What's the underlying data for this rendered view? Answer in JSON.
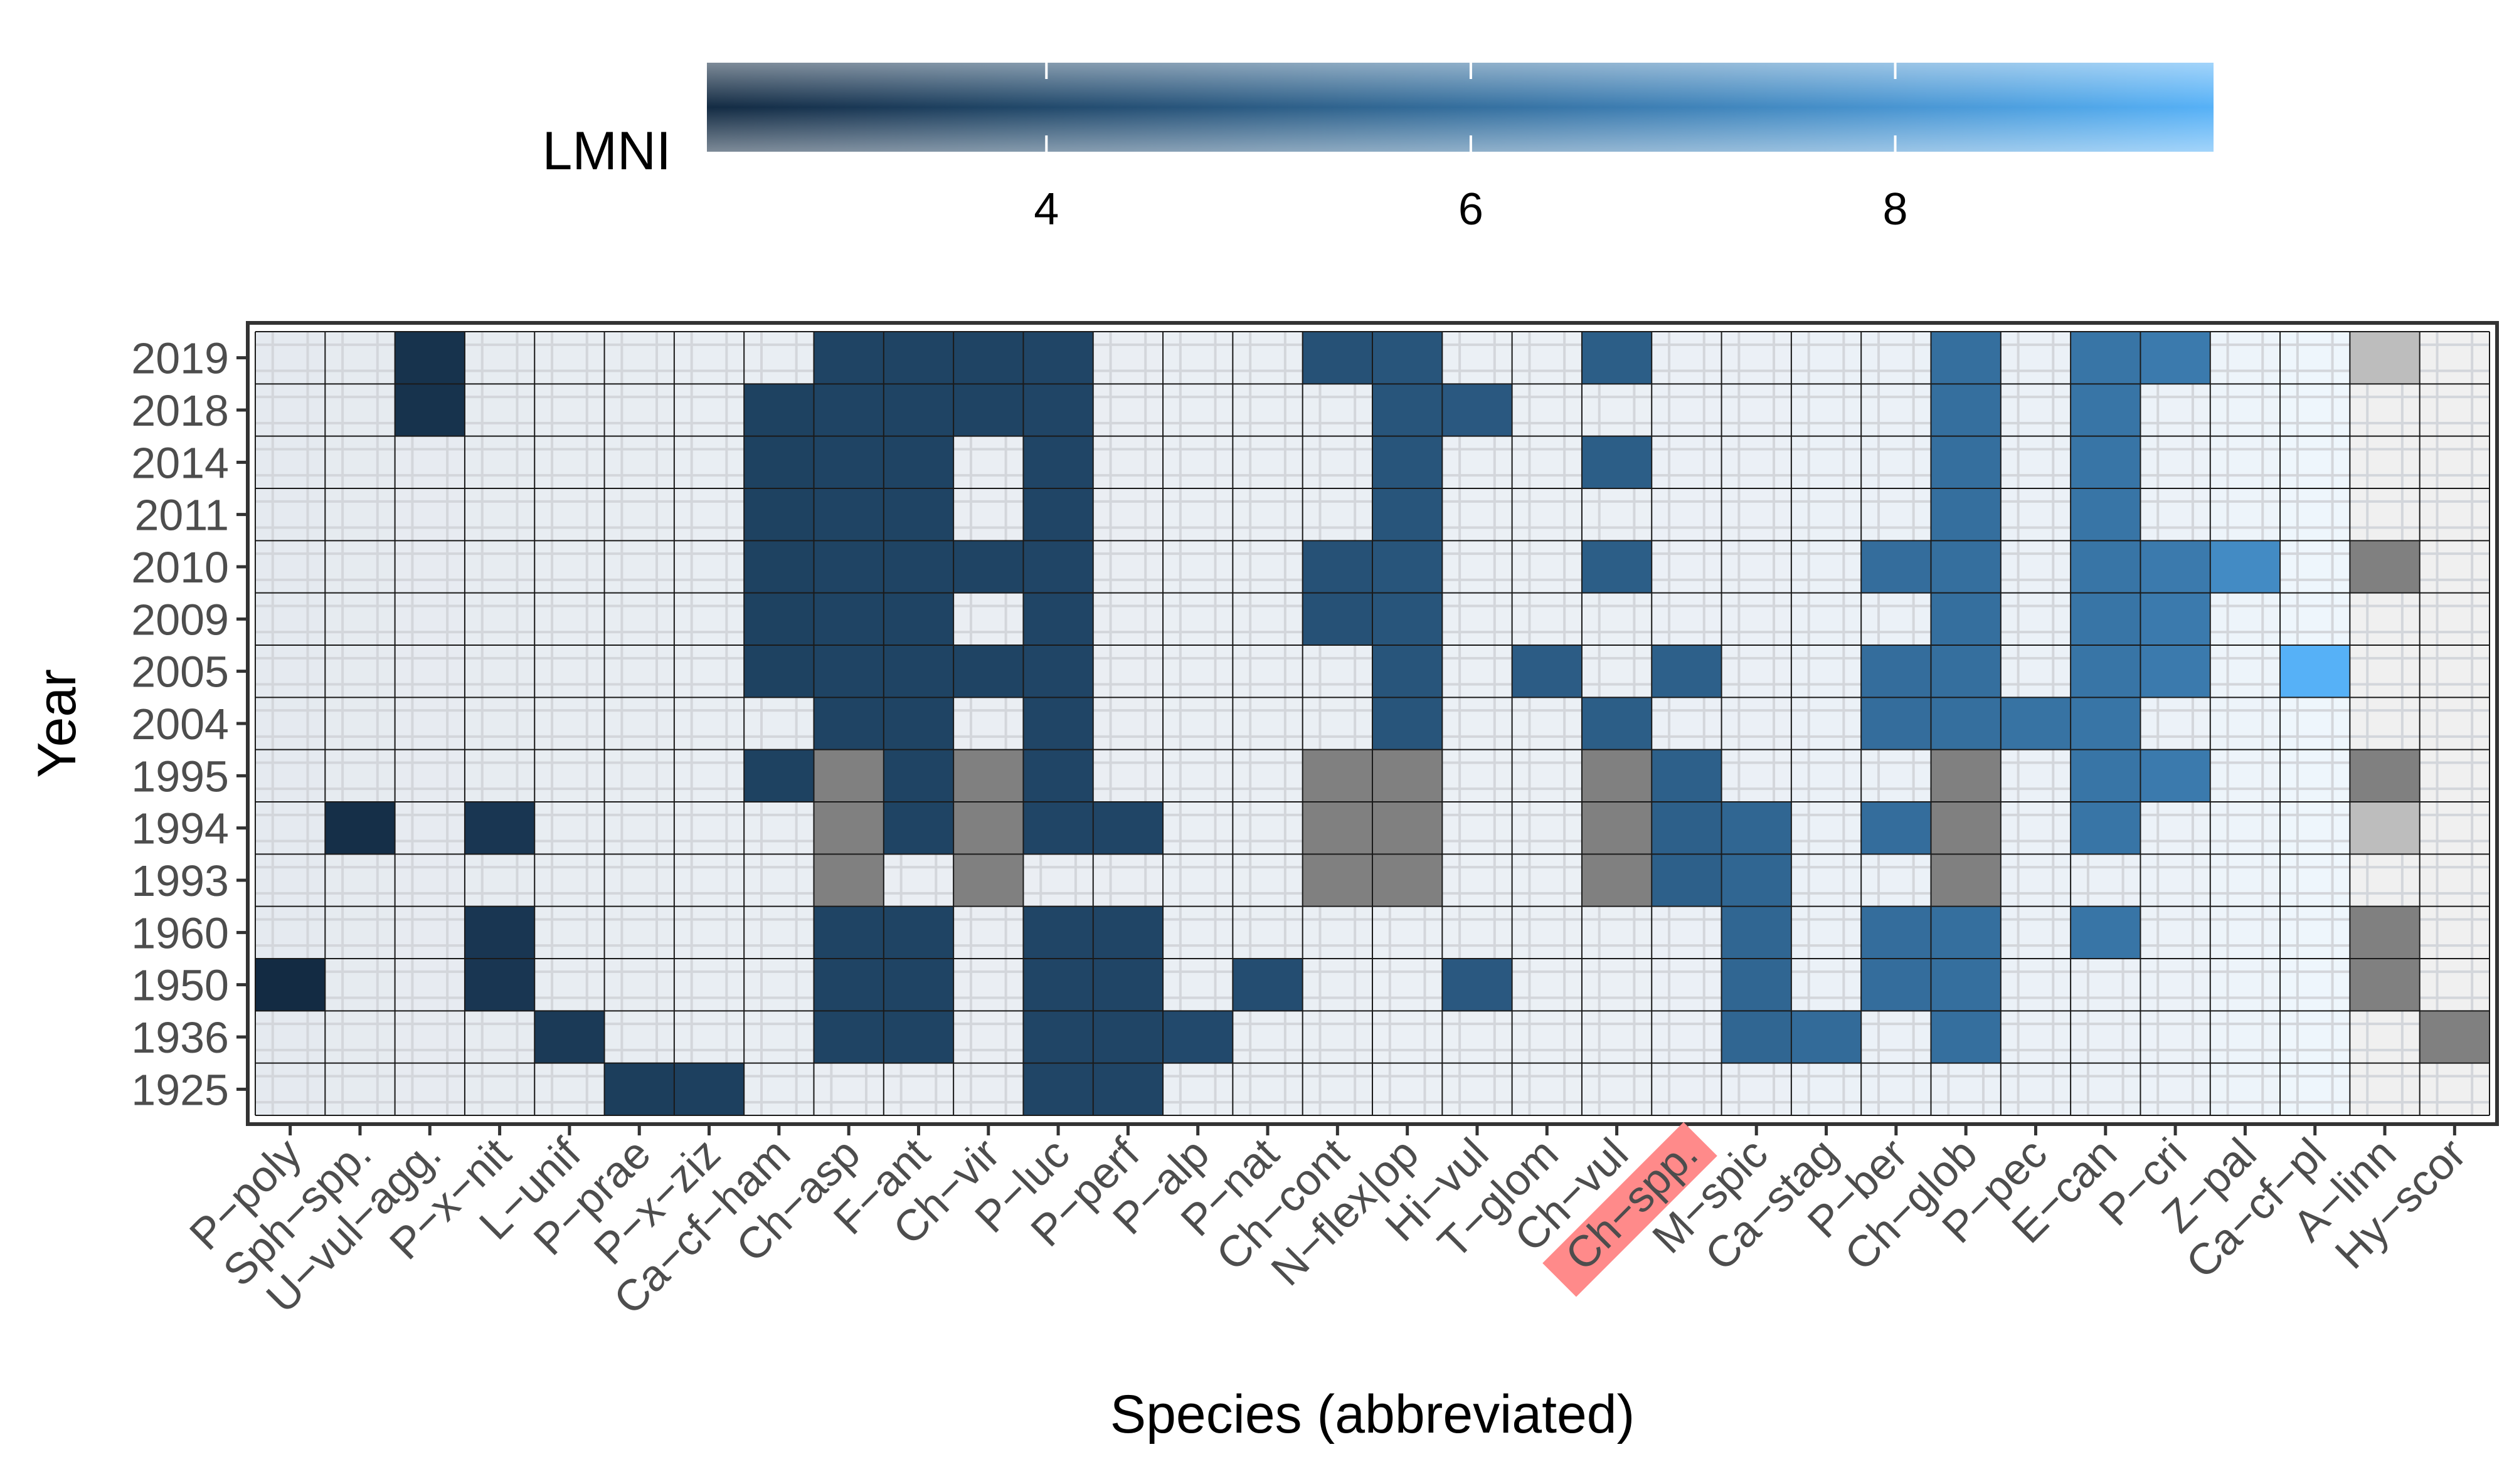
{
  "chart_data": {
    "type": "heatmap",
    "xlabel": "Species (abbreviated)",
    "ylabel": "Year",
    "x_categories": [
      "P-poly",
      "Sph-spp.",
      "U-vul-agg.",
      "P-x-nit",
      "L-unif",
      "P-prae",
      "P-x-ziz",
      "Ca-cf-ham",
      "Ch-asp",
      "F-ant",
      "Ch-vir",
      "P-luc",
      "P-perf",
      "P-alp",
      "P-nat",
      "Ch-cont",
      "N-flex|op",
      "Hi-vul",
      "T-glom",
      "Ch-vul",
      "Ch-spp.",
      "M-spic",
      "Ca-stag",
      "P-ber",
      "Ch-glob",
      "P-pec",
      "E-can",
      "P-cri",
      "Z-pal",
      "Ca-cf-pl",
      "A-linn",
      "Hy-scor"
    ],
    "x_tick_labels": [
      "P−poly",
      "Sph−spp.",
      "U−vul−agg.",
      "P−x−nit",
      "L−unif",
      "P−prae",
      "P−x−ziz",
      "Ca−cf−ham",
      "Ch−asp",
      "F−ant",
      "Ch−vir",
      "P−luc",
      "P−perf",
      "P−alp",
      "P−nat",
      "Ch−cont",
      "N−flex|op",
      "Hi−vul",
      "T−glom",
      "Ch−vul",
      "Ch−spp.",
      "M−spic",
      "Ca−stag",
      "P−ber",
      "Ch−glob",
      "P−pec",
      "E−can",
      "P−cri",
      "Z−pal",
      "Ca−cf−pl",
      "A−linn",
      "Hy−scor"
    ],
    "highlighted_x_label": "Ch−spp.",
    "highlight_color": "#ff8a8a",
    "y_categories": [
      "2019",
      "2018",
      "2014",
      "2011",
      "2010",
      "2009",
      "2005",
      "2004",
      "1995",
      "1994",
      "1993",
      "1960",
      "1950",
      "1936",
      "1925"
    ],
    "legend": {
      "title": "LMNI",
      "placement": "top",
      "range": [
        2.4,
        9.5
      ],
      "ticks": [
        "4",
        "6",
        "8"
      ],
      "tick_values": [
        4,
        6,
        8
      ],
      "gradient_colors": [
        "#132b43",
        "#56b1f7"
      ]
    },
    "species_lmni": [
      2.4,
      2.6,
      2.8,
      3.0,
      3.2,
      3.4,
      3.5,
      3.6,
      3.7,
      3.7,
      3.7,
      3.8,
      3.8,
      4.0,
      4.2,
      4.4,
      4.6,
      4.8,
      5.0,
      5.1,
      5.2,
      5.5,
      5.8,
      5.9,
      6.0,
      6.2,
      6.3,
      6.6,
      7.5,
      9.5,
      null,
      null
    ],
    "column_background_colors": [
      "#e5eaf0",
      "#e6ebf0",
      "#e7ebf1",
      "#e7ecf1",
      "#e8edf2",
      "#e8edf2",
      "#e9eef3",
      "#e9eef3",
      "#eaeef3",
      "#eaeef3",
      "#eaeef3",
      "#eaeef3",
      "#eaeef3",
      "#eaeff4",
      "#eaeff4",
      "#eaeff4",
      "#ebf0f5",
      "#ebf0f5",
      "#ebf0f5",
      "#ebf0f5",
      "#ebf0f6",
      "#ebf0f6",
      "#ebf1f7",
      "#ebf1f7",
      "#ebf1f7",
      "#ebf1f7",
      "#ebf1f7",
      "#ecf2f8",
      "#edf4fa",
      "#eef6fc",
      "#f0f0f0",
      "#f0f0f0"
    ],
    "missing_color": "#808080",
    "light_missing_color": "#bdbdbd",
    "cells": [
      {
        "species": "P-poly",
        "years": [
          "1950"
        ],
        "lmni": 2.4
      },
      {
        "species": "Sph-spp.",
        "years": [
          "1994"
        ],
        "lmni": 2.6
      },
      {
        "species": "U-vul-agg.",
        "years": [
          "2019",
          "2018"
        ],
        "lmni": 2.8
      },
      {
        "species": "P-x-nit",
        "years": [
          "1994",
          "1960",
          "1950"
        ],
        "lmni": 3.0
      },
      {
        "species": "L-unif",
        "years": [
          "1936"
        ],
        "lmni": 3.2
      },
      {
        "species": "P-prae",
        "years": [
          "1925"
        ],
        "lmni": 3.4
      },
      {
        "species": "P-x-ziz",
        "years": [
          "1925"
        ],
        "lmni": 3.5
      },
      {
        "species": "Ca-cf-ham",
        "years": [
          "2018",
          "2014",
          "2011",
          "2010",
          "2009",
          "2005",
          "1995"
        ],
        "lmni": 3.6
      },
      {
        "species": "Ch-asp",
        "years": [
          "2019",
          "2018",
          "2014",
          "2011",
          "2010",
          "2009",
          "2005",
          "2004",
          "1960",
          "1950",
          "1936"
        ],
        "lmni": 3.7,
        "missing_years": [
          "1995",
          "1994",
          "1993"
        ]
      },
      {
        "species": "F-ant",
        "years": [
          "2019",
          "2018",
          "2014",
          "2011",
          "2010",
          "2009",
          "2005",
          "2004",
          "1995",
          "1994",
          "1960",
          "1950",
          "1936"
        ],
        "lmni": 3.7
      },
      {
        "species": "Ch-vir",
        "years": [
          "2019",
          "2018",
          "2010",
          "2005"
        ],
        "lmni": 3.7,
        "missing_years": [
          "1995",
          "1994",
          "1993"
        ]
      },
      {
        "species": "P-luc",
        "years": [
          "2019",
          "2018",
          "2014",
          "2011",
          "2010",
          "2009",
          "2005",
          "2004",
          "1995",
          "1994",
          "1960",
          "1950",
          "1936",
          "1925"
        ],
        "lmni": 3.8
      },
      {
        "species": "P-perf",
        "years": [
          "1994",
          "1960",
          "1950",
          "1936",
          "1925"
        ],
        "lmni": 3.8
      },
      {
        "species": "P-alp",
        "years": [
          "1936"
        ],
        "lmni": 4.0
      },
      {
        "species": "P-nat",
        "years": [
          "1950"
        ],
        "lmni": 4.2
      },
      {
        "species": "Ch-cont",
        "years": [
          "2019",
          "2010",
          "2009"
        ],
        "lmni": 4.4,
        "missing_years": [
          "1995",
          "1994",
          "1993"
        ]
      },
      {
        "species": "N-flex|op",
        "years": [
          "2019",
          "2018",
          "2014",
          "2011",
          "2010",
          "2009",
          "2005",
          "2004"
        ],
        "lmni": 4.6,
        "missing_years": [
          "1995",
          "1994",
          "1993"
        ]
      },
      {
        "species": "Hi-vul",
        "years": [
          "2018",
          "1950"
        ],
        "lmni": 4.8
      },
      {
        "species": "T-glom",
        "years": [
          "2005"
        ],
        "lmni": 5.0
      },
      {
        "species": "Ch-vul",
        "years": [
          "2019",
          "2014",
          "2010",
          "2004"
        ],
        "lmni": 5.1,
        "missing_years": [
          "1995",
          "1994",
          "1993"
        ]
      },
      {
        "species": "Ch-spp.",
        "years": [
          "2005",
          "1995",
          "1994",
          "1993"
        ],
        "lmni": 5.2
      },
      {
        "species": "M-spic",
        "years": [
          "1994",
          "1993",
          "1960",
          "1950",
          "1936"
        ],
        "lmni": 5.5
      },
      {
        "species": "Ca-stag",
        "years": [
          "1936"
        ],
        "lmni": 5.8
      },
      {
        "species": "P-ber",
        "years": [
          "2010",
          "2005",
          "2004",
          "1994",
          "1960",
          "1950"
        ],
        "lmni": 5.9
      },
      {
        "species": "Ch-glob",
        "years": [
          "2019",
          "2018",
          "2014",
          "2011",
          "2010",
          "2009",
          "2005",
          "2004",
          "1960",
          "1950",
          "1936"
        ],
        "lmni": 6.0,
        "missing_years": [
          "1995",
          "1994",
          "1993"
        ]
      },
      {
        "species": "P-pec",
        "years": [
          "2004"
        ],
        "lmni": 6.2
      },
      {
        "species": "E-can",
        "years": [
          "2019",
          "2018",
          "2014",
          "2011",
          "2010",
          "2009",
          "2005",
          "2004",
          "1995",
          "1994",
          "1960"
        ],
        "lmni": 6.3
      },
      {
        "species": "P-cri",
        "years": [
          "2019",
          "2010",
          "2009",
          "2005",
          "1995"
        ],
        "lmni": 6.6
      },
      {
        "species": "Z-pal",
        "years": [
          "2010"
        ],
        "lmni": 7.5
      },
      {
        "species": "Ca-cf-pl",
        "years": [
          "2005"
        ],
        "lmni": 9.5
      },
      {
        "species": "A-linn",
        "years": [],
        "lmni": null,
        "missing_years": [
          "2010",
          "1995",
          "1960",
          "1950"
        ],
        "light_missing_years": [
          "2019",
          "1994"
        ]
      },
      {
        "species": "Hy-scor",
        "years": [],
        "lmni": null,
        "missing_years": [
          "1936"
        ]
      }
    ]
  }
}
